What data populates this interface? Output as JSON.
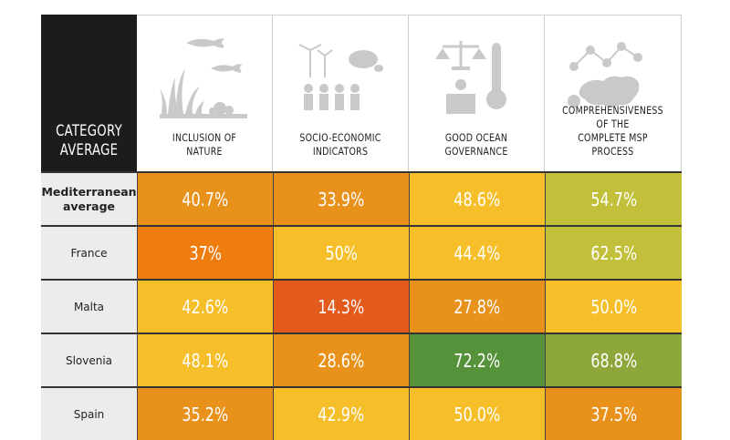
{
  "header": {
    "category_label": "CATEGORY\nAVERAGE",
    "columns": [
      {
        "label": "INCLUSION OF\nNATURE",
        "icon": "nature-fish-seaweed-icon"
      },
      {
        "label": "SOCIO-ECONOMIC\nINDICATORS",
        "icon": "people-windmill-turtle-icon"
      },
      {
        "label": "GOOD OCEAN\nGOVERNANCE",
        "icon": "scales-thermometer-speaker-icon"
      },
      {
        "label": "COMPREHENSIVENESS OF THE\nCOMPLETE MSP PROCESS",
        "icon": "europe-map-pins-icon"
      }
    ]
  },
  "colors": {
    "deep_orange": "#e25a1c",
    "orange": "#ef7c0f",
    "amber": "#e8921c",
    "yellow": "#f6bf2a",
    "olive": "#c2c03a",
    "green_light": "#8ea73b",
    "green": "#55923a"
  },
  "chart_data": {
    "type": "table",
    "columns": [
      "INCLUSION OF NATURE",
      "SOCIO-ECONOMIC INDICATORS",
      "GOOD OCEAN GOVERNANCE",
      "COMPREHENSIVENESS OF THE COMPLETE MSP PROCESS"
    ],
    "rows": [
      {
        "label": "Mediterranean\naverage",
        "bold": true,
        "values": [
          "40.7%",
          "33.9%",
          "48.6%",
          "54.7%"
        ],
        "colors": [
          "#e8921c",
          "#e8921c",
          "#f6bf2a",
          "#c2c03a"
        ]
      },
      {
        "label": "France",
        "bold": false,
        "values": [
          "37%",
          "50%",
          "44.4%",
          "62.5%"
        ],
        "colors": [
          "#ef7c0f",
          "#f6bf2a",
          "#f6bf2a",
          "#c2c03a"
        ]
      },
      {
        "label": "Malta",
        "bold": false,
        "values": [
          "42.6%",
          "14.3%",
          "27.8%",
          "50.0%"
        ],
        "colors": [
          "#f6bf2a",
          "#e25a1c",
          "#e8921c",
          "#f6bf2a"
        ]
      },
      {
        "label": "Slovenia",
        "bold": false,
        "values": [
          "48.1%",
          "28.6%",
          "72.2%",
          "68.8%"
        ],
        "colors": [
          "#f6bf2a",
          "#e8921c",
          "#55923a",
          "#8ea73b"
        ]
      },
      {
        "label": "Spain",
        "bold": false,
        "values": [
          "35.2%",
          "42.9%",
          "50.0%",
          "37.5%"
        ],
        "colors": [
          "#e8921c",
          "#f6bf2a",
          "#f6bf2a",
          "#e8921c"
        ]
      }
    ]
  }
}
